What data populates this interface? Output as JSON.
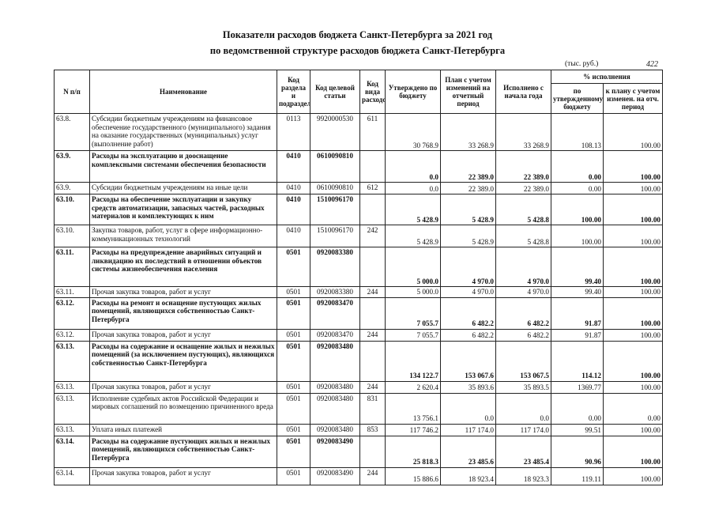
{
  "header": {
    "title_line1": "Показатели расходов бюджета Санкт-Петербурга за 2021 год",
    "title_line2": "по ведомственной структуре расходов бюджета Санкт-Петербурга",
    "unit": "(тыс. руб.)",
    "page_number": "422"
  },
  "table": {
    "columns": [
      "N п/п",
      "Наименование",
      "Код раздела и подраздела",
      "Код целевой статьи",
      "Код вида расходов",
      "Утверждено по бюджету",
      "План с учетом изменений на отчетный период",
      "Исполнено с начала года"
    ],
    "percent_group": "% исполнения",
    "percent_columns": [
      "по утвержденному бюджету",
      "к плану с учетом изменен. на отч. период"
    ],
    "bold_rows": [
      1,
      3,
      5,
      7,
      9,
      13
    ],
    "rows": [
      [
        "63.8.",
        "Субсидии бюджетным учреждениям на финансовое обеспечение государственного (муниципального) задания на оказание государственных (муниципальных) услуг (выполнение работ)",
        "0113",
        "9920000530",
        "611",
        "30 768.9",
        "33 268.9",
        "33 268.9",
        "108.13",
        "100.00"
      ],
      [
        "63.9.",
        "Расходы на эксплуатацию и дооснащение комплексными системами обеспечения безопасности",
        "0410",
        "0610090810",
        null,
        "0.0",
        "22 389.0",
        "22 389.0",
        "0.00",
        "100.00"
      ],
      [
        "63.9.",
        "Субсидии бюджетным учреждениям на иные цели",
        "0410",
        "0610090810",
        "612",
        "0.0",
        "22 389.0",
        "22 389.0",
        "0.00",
        "100.00"
      ],
      [
        "63.10.",
        "Расходы на обеспечение эксплуатации и закупку средств автоматизации, запасных частей, расходных материалов и комплектующих к ним",
        "0410",
        "1510096170",
        null,
        "5 428.9",
        "5 428.9",
        "5 428.8",
        "100.00",
        "100.00"
      ],
      [
        "63.10.",
        "Закупка товаров, работ, услуг в сфере информационно-коммуникационных технологий",
        "0410",
        "1510096170",
        "242",
        "5 428.9",
        "5 428.9",
        "5 428.8",
        "100.00",
        "100.00"
      ],
      [
        "63.11.",
        "Расходы на предупреждение аварийных ситуаций и ликвидацию их последствий в отношении объектов системы жизнеобеспечения населения",
        "0501",
        "0920083380",
        null,
        "5 000.0",
        "4 970.0",
        "4 970.0",
        "99.40",
        "100.00"
      ],
      [
        "63.11.",
        "Прочая закупка товаров, работ и услуг",
        "0501",
        "0920083380",
        "244",
        "5 000.0",
        "4 970.0",
        "4 970.0",
        "99.40",
        "100.00"
      ],
      [
        "63.12.",
        "Расходы на ремонт и оснащение пустующих жилых помещений, являющихся собственностью Санкт-Петербурга",
        "0501",
        "0920083470",
        null,
        "7 055.7",
        "6 482.2",
        "6 482.2",
        "91.87",
        "100.00"
      ],
      [
        "63.12.",
        "Прочая закупка товаров, работ и услуг",
        "0501",
        "0920083470",
        "244",
        "7 055.7",
        "6 482.2",
        "6 482.2",
        "91.87",
        "100.00"
      ],
      [
        "63.13.",
        "Расходы на содержание и оснащение жилых и нежилых помещений (за исключением пустующих), являющихся собственностью Санкт-Петербурга",
        "0501",
        "0920083480",
        null,
        "134 122.7",
        "153 067.6",
        "153 067.5",
        "114.12",
        "100.00"
      ],
      [
        "63.13.",
        "Прочая закупка товаров, работ и услуг",
        "0501",
        "0920083480",
        "244",
        "2 620.4",
        "35 893.6",
        "35 893.5",
        "1369.77",
        "100.00"
      ],
      [
        "63.13.",
        "Исполнение судебных актов Российской Федерации и мировых соглашений по возмещению причиненного вреда",
        "0501",
        "0920083480",
        "831",
        "13 756.1",
        "0.0",
        "0.0",
        "0.00",
        "0.00"
      ],
      [
        "63.13.",
        "Уплата иных платежей",
        "0501",
        "0920083480",
        "853",
        "117 746.2",
        "117 174.0",
        "117 174.0",
        "99.51",
        "100.00"
      ],
      [
        "63.14.",
        "Расходы на содержание пустующих жилых и нежилых помещений, являющихся собственностью Санкт-Петербурга",
        "0501",
        "0920083490",
        null,
        "25 818.3",
        "23 485.6",
        "23 485.4",
        "90.96",
        "100.00"
      ],
      [
        "63.14.",
        "Прочая закупка товаров, работ и услуг",
        "0501",
        "0920083490",
        "244",
        "15 886.6",
        "18 923.4",
        "18 923.3",
        "119.11",
        "100.00"
      ]
    ]
  }
}
